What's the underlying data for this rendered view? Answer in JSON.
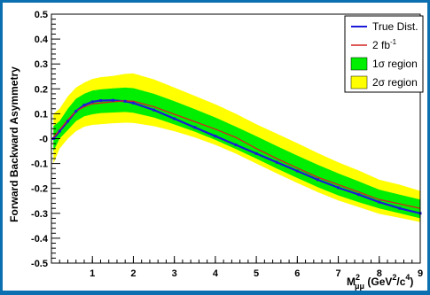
{
  "chart_data": {
    "type": "line",
    "title": "",
    "xlabel_main": "M",
    "xlabel_sup": "2",
    "xlabel_sub": "μμ",
    "xlabel_unit_pre": " (GeV",
    "xlabel_unit_sup1": "2",
    "xlabel_unit_mid": "/c",
    "xlabel_unit_sup2": "4",
    "xlabel_unit_post": ")",
    "ylabel": "Forward Backward Asymmetry",
    "xlim": [
      0,
      9
    ],
    "ylim": [
      -0.5,
      0.5
    ],
    "x_ticks": [
      1,
      2,
      3,
      4,
      5,
      6,
      7,
      8,
      9
    ],
    "y_ticks": [
      -0.5,
      -0.4,
      -0.3,
      -0.2,
      -0.1,
      0,
      0.1,
      0.2,
      0.3,
      0.4,
      0.5
    ],
    "y_tick_labels": [
      "-0.5",
      "-0.4",
      "-0.3",
      "-0.2",
      "-0.1",
      "-0",
      "0.1",
      "0.2",
      "0.3",
      "0.4",
      "0.5"
    ],
    "grid": false,
    "legend_position": "top-right",
    "x": [
      0.05,
      0.2,
      0.4,
      0.6,
      0.8,
      1.0,
      1.2,
      1.5,
      1.8,
      2.0,
      2.5,
      3.0,
      3.5,
      4.0,
      4.5,
      5.0,
      5.5,
      6.0,
      6.5,
      7.0,
      7.5,
      8.0,
      8.5,
      9.0
    ],
    "series": [
      {
        "name": "True Dist.",
        "color": "#1a1ad8",
        "values": [
          0.0,
          0.03,
          0.07,
          0.11,
          0.135,
          0.148,
          0.153,
          0.154,
          0.15,
          0.143,
          0.115,
          0.08,
          0.045,
          0.01,
          -0.025,
          -0.06,
          -0.095,
          -0.13,
          -0.165,
          -0.197,
          -0.225,
          -0.255,
          -0.28,
          -0.3
        ]
      },
      {
        "name": "2 fb",
        "name_sup": "-1",
        "color": "#d42020",
        "values": [
          0.005,
          0.035,
          0.075,
          0.11,
          0.128,
          0.14,
          0.143,
          0.148,
          0.152,
          0.15,
          0.128,
          0.098,
          0.068,
          0.038,
          0.005,
          -0.04,
          -0.08,
          -0.118,
          -0.155,
          -0.185,
          -0.215,
          -0.245,
          -0.262,
          -0.28
        ]
      }
    ],
    "bands": [
      {
        "name": "2σ region",
        "color": "#ffff00",
        "lower": [
          -0.1,
          -0.04,
          0.0,
          0.03,
          0.048,
          0.055,
          0.058,
          0.062,
          0.064,
          0.063,
          0.05,
          0.03,
          0.005,
          -0.025,
          -0.06,
          -0.1,
          -0.14,
          -0.178,
          -0.215,
          -0.248,
          -0.275,
          -0.302,
          -0.318,
          -0.335
        ],
        "upper": [
          0.1,
          0.12,
          0.17,
          0.205,
          0.225,
          0.24,
          0.247,
          0.252,
          0.26,
          0.262,
          0.238,
          0.205,
          0.172,
          0.138,
          0.1,
          0.058,
          0.02,
          -0.018,
          -0.058,
          -0.095,
          -0.128,
          -0.165,
          -0.185,
          -0.21
        ]
      },
      {
        "name": "1σ region",
        "color": "#00ee00",
        "lower": [
          -0.05,
          0.0,
          0.035,
          0.07,
          0.09,
          0.098,
          0.103,
          0.105,
          0.107,
          0.104,
          0.085,
          0.057,
          0.028,
          -0.005,
          -0.042,
          -0.08,
          -0.12,
          -0.158,
          -0.195,
          -0.228,
          -0.255,
          -0.28,
          -0.3,
          -0.32
        ]
      },
      {
        "name": "1σ region upper",
        "color": "#00ee00",
        "upper": [
          0.05,
          0.07,
          0.12,
          0.16,
          0.18,
          0.193,
          0.198,
          0.202,
          0.205,
          0.203,
          0.18,
          0.15,
          0.118,
          0.085,
          0.048,
          0.01,
          -0.03,
          -0.068,
          -0.105,
          -0.14,
          -0.172,
          -0.205,
          -0.225,
          -0.245
        ]
      }
    ],
    "legend": [
      {
        "label": "True Dist.",
        "kind": "line",
        "color": "#1a1ad8"
      },
      {
        "label": "2 fb",
        "sup": "-1",
        "kind": "line",
        "color": "#d42020"
      },
      {
        "label": "1σ region",
        "kind": "box",
        "color": "#00ee00"
      },
      {
        "label": "2σ region",
        "kind": "box",
        "color": "#ffff00"
      }
    ]
  }
}
